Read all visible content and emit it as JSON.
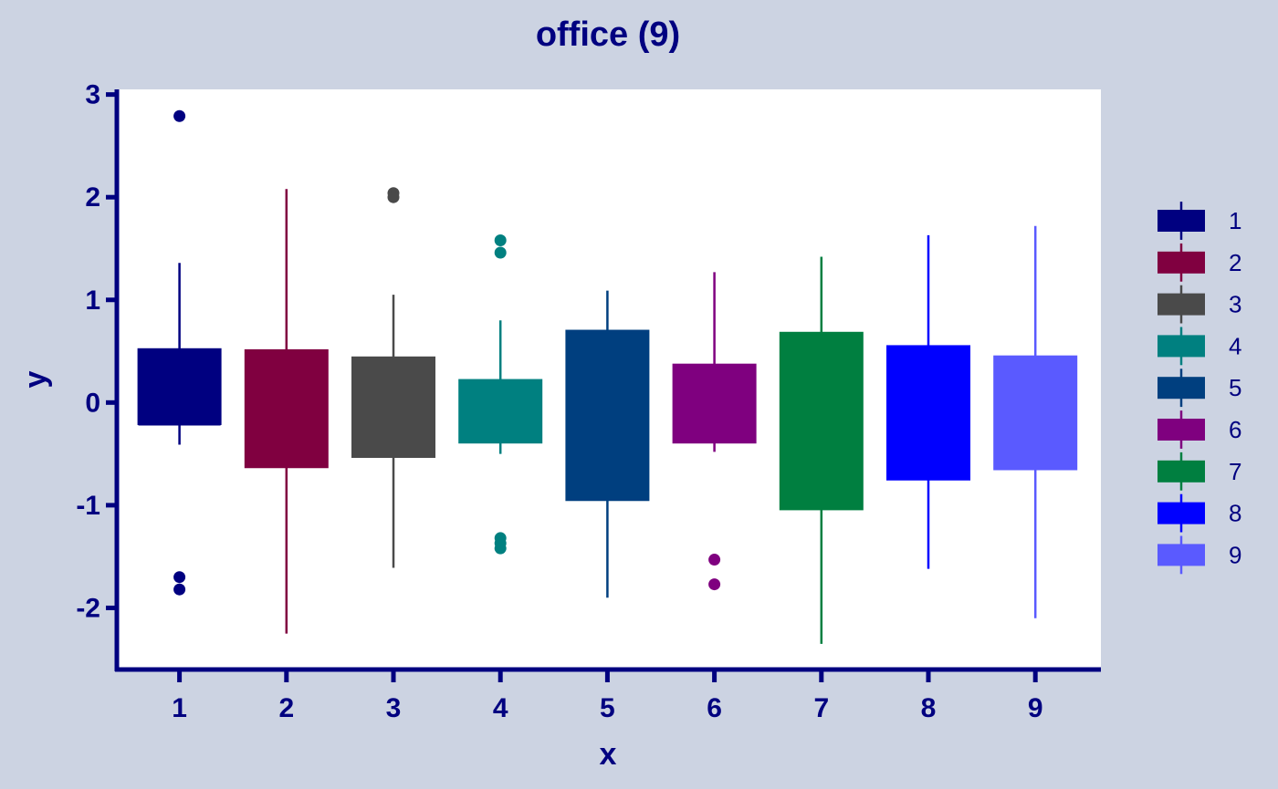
{
  "chart_data": {
    "type": "boxplot",
    "title": "office (9)",
    "xlabel": "x",
    "ylabel": "y",
    "ylim": [
      -2.6,
      3.05
    ],
    "yticks": [
      3,
      2,
      1,
      0,
      -1,
      -2
    ],
    "ytick_labels": [
      "3",
      "2",
      "1",
      "0",
      "-1",
      "-2"
    ],
    "categories": [
      "1",
      "2",
      "3",
      "4",
      "5",
      "6",
      "7",
      "8",
      "9"
    ],
    "legend_position": "right",
    "grid": false,
    "colors": {
      "background": "#ccd3e2",
      "panel": "#ffffff",
      "axis": "#000080"
    },
    "series": [
      {
        "name": "1",
        "color": "#000080",
        "min": -0.41,
        "q1": -0.21,
        "median": -0.21,
        "q3": 0.52,
        "max": 1.36,
        "outliers": [
          2.79,
          -1.7,
          -1.82
        ]
      },
      {
        "name": "2",
        "color": "#800040",
        "min": -2.25,
        "q1": -0.63,
        "median": 0.5,
        "q3": 0.51,
        "max": 2.08,
        "outliers": []
      },
      {
        "name": "3",
        "color": "#4a4a4a",
        "min": -1.61,
        "q1": -0.53,
        "median": 0.43,
        "q3": 0.44,
        "max": 1.05,
        "outliers": [
          2.04,
          2.0
        ]
      },
      {
        "name": "4",
        "color": "#008080",
        "min": -0.5,
        "q1": -0.39,
        "median": 0.21,
        "q3": 0.22,
        "max": 0.8,
        "outliers": [
          1.58,
          1.46,
          -1.32,
          -1.37,
          -1.42
        ]
      },
      {
        "name": "5",
        "color": "#003f7f",
        "min": -1.9,
        "q1": -0.95,
        "median": 0.69,
        "q3": 0.7,
        "max": 1.09,
        "outliers": []
      },
      {
        "name": "6",
        "color": "#7f007f",
        "min": -0.48,
        "q1": -0.39,
        "median": 0.36,
        "q3": 0.37,
        "max": 1.27,
        "outliers": [
          -1.53,
          -1.77
        ]
      },
      {
        "name": "7",
        "color": "#007f40",
        "min": -2.35,
        "q1": -1.04,
        "median": 0.67,
        "q3": 0.68,
        "max": 1.42,
        "outliers": []
      },
      {
        "name": "8",
        "color": "#0000ff",
        "min": -1.62,
        "q1": -0.75,
        "median": 0.54,
        "q3": 0.55,
        "max": 1.63,
        "outliers": []
      },
      {
        "name": "9",
        "color": "#5a5aff",
        "min": -2.1,
        "q1": -0.65,
        "median": 0.44,
        "q3": 0.45,
        "max": 1.72,
        "outliers": []
      }
    ]
  }
}
